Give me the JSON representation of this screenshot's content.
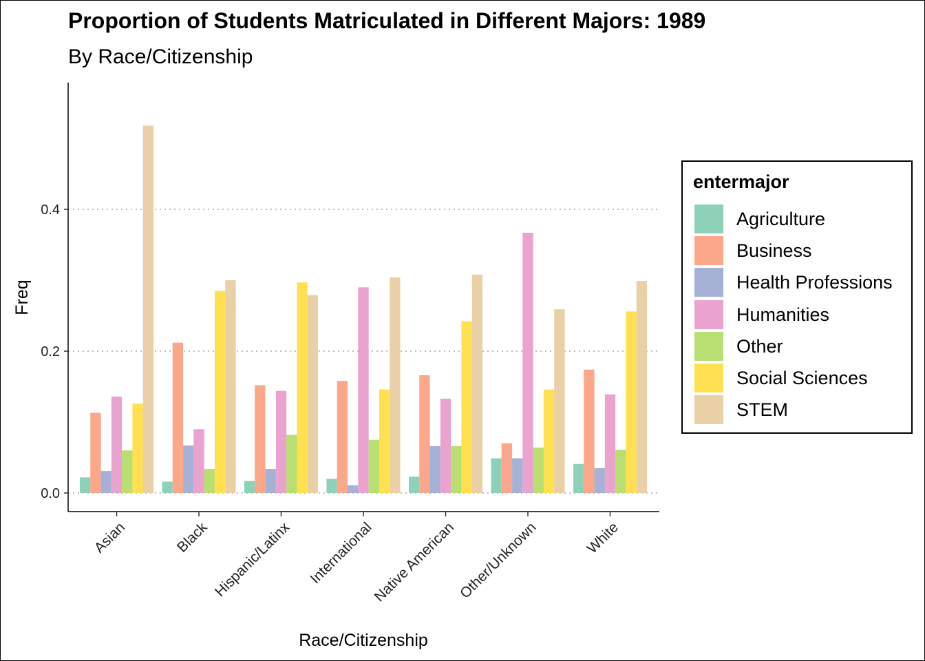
{
  "title": "Proportion of Students Matriculated in Different Majors: 1989",
  "subtitle": "By Race/Citizenship",
  "chart_data": {
    "type": "bar",
    "xlabel": "Race/Citizenship",
    "ylabel": "Freq",
    "ylim": [
      0,
      0.55
    ],
    "yticks": [
      0.0,
      0.2,
      0.4
    ],
    "ytick_labels": [
      "0.0",
      "0.2",
      "0.4"
    ],
    "grid": "horizontal dotted",
    "legend_position": "right",
    "legend_title": "entermajor",
    "categories": [
      "Asian",
      "Black",
      "Hispanic/Latinx",
      "International",
      "Native American",
      "Other/Unknown",
      "White"
    ],
    "series": [
      {
        "name": "Agriculture",
        "color": "#8ed1b9",
        "values": [
          0.022,
          0.016,
          0.017,
          0.02,
          0.023,
          0.049,
          0.041
        ]
      },
      {
        "name": "Business",
        "color": "#fca68a",
        "values": [
          0.113,
          0.212,
          0.152,
          0.158,
          0.166,
          0.07,
          0.174
        ]
      },
      {
        "name": "Health Professions",
        "color": "#a6b2d5",
        "values": [
          0.031,
          0.067,
          0.034,
          0.011,
          0.066,
          0.049,
          0.035
        ]
      },
      {
        "name": "Humanities",
        "color": "#eaa3cf",
        "values": [
          0.136,
          0.09,
          0.144,
          0.29,
          0.133,
          0.367,
          0.139
        ]
      },
      {
        "name": "Other",
        "color": "#b9de72",
        "values": [
          0.06,
          0.034,
          0.082,
          0.075,
          0.066,
          0.064,
          0.061
        ]
      },
      {
        "name": "Social Sciences",
        "color": "#ffe050",
        "values": [
          0.126,
          0.285,
          0.297,
          0.146,
          0.242,
          0.146,
          0.256
        ]
      },
      {
        "name": "STEM",
        "color": "#e9d0a6",
        "values": [
          0.518,
          0.3,
          0.279,
          0.304,
          0.308,
          0.259,
          0.299
        ]
      }
    ]
  }
}
